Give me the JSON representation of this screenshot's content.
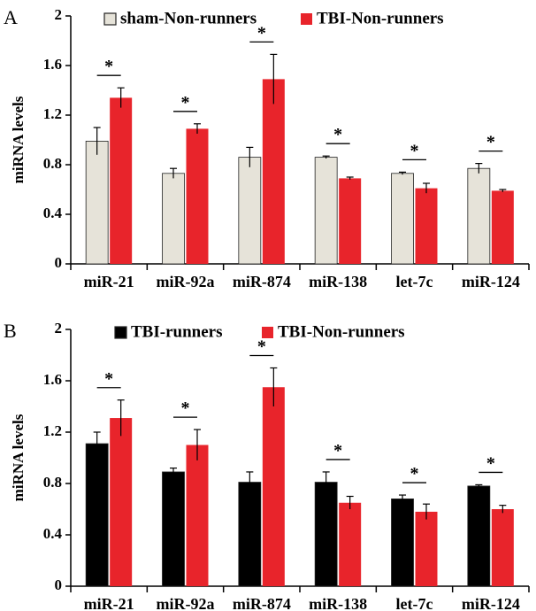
{
  "chart_data": [
    {
      "type": "bar",
      "panel": "A",
      "categories": [
        "miR-21",
        "miR-92a",
        "miR-874",
        "miR-138",
        "let-7c",
        "miR-124"
      ],
      "ylabel": "miRNA levels",
      "ylim": [
        0,
        2
      ],
      "yticks": [
        "0",
        "0.4",
        "0.8",
        "1.2",
        "1.6",
        "2"
      ],
      "legend_placement": "top",
      "series": [
        {
          "name": "sham-Non-runners",
          "color": "#e6e3d9",
          "values": [
            0.99,
            0.73,
            0.86,
            0.86,
            0.73,
            0.77
          ],
          "errors": [
            0.11,
            0.04,
            0.08,
            0.01,
            0.01,
            0.04
          ]
        },
        {
          "name": "TBI-Non-runners",
          "color": "#e8242b",
          "values": [
            1.34,
            1.09,
            1.49,
            0.69,
            0.61,
            0.59
          ],
          "errors": [
            0.08,
            0.04,
            0.2,
            0.01,
            0.04,
            0.01
          ]
        }
      ],
      "significance": [
        "*",
        "*",
        "*",
        "*",
        "*",
        "*"
      ]
    },
    {
      "type": "bar",
      "panel": "B",
      "categories": [
        "miR-21",
        "miR-92a",
        "miR-874",
        "miR-138",
        "let-7c",
        "miR-124"
      ],
      "ylabel": "miRNA levels",
      "ylim": [
        0,
        2
      ],
      "yticks": [
        "0",
        "0.4",
        "0.8",
        "1.2",
        "1.6",
        "2"
      ],
      "legend_placement": "top",
      "series": [
        {
          "name": "TBI-runners",
          "color": "#000000",
          "values": [
            1.11,
            0.89,
            0.81,
            0.81,
            0.68,
            0.78
          ],
          "errors": [
            0.09,
            0.03,
            0.08,
            0.08,
            0.03,
            0.01
          ]
        },
        {
          "name": "TBI-Non-runners",
          "color": "#e8242b",
          "values": [
            1.31,
            1.1,
            1.55,
            0.65,
            0.58,
            0.6
          ],
          "errors": [
            0.14,
            0.12,
            0.15,
            0.05,
            0.06,
            0.03
          ]
        }
      ],
      "significance": [
        "*",
        "*",
        "*",
        "*",
        "*",
        "*"
      ]
    }
  ]
}
